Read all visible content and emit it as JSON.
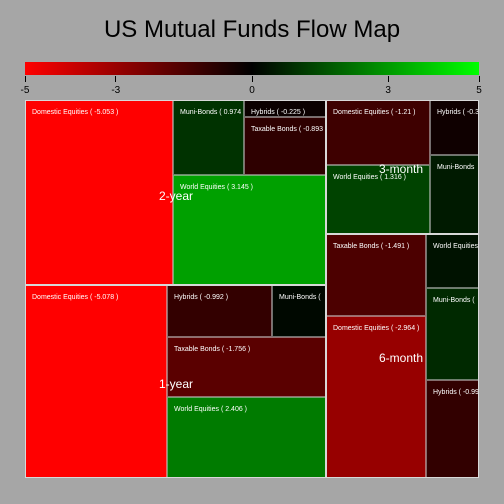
{
  "chart_data": {
    "type": "treemap",
    "title": "US Mutual Funds Flow Map",
    "color_scale": {
      "min": -5,
      "max": 5,
      "colors": [
        "#ff0000",
        "#000000",
        "#00ff00"
      ],
      "ticks": [
        "-5",
        "-3",
        "0",
        "3",
        "5"
      ],
      "tick_values": [
        -5,
        -3,
        0,
        3,
        5
      ]
    },
    "groups": [
      {
        "name": "2-year",
        "items": [
          {
            "label": "Domestic Equities ( -5.053 )",
            "value": -5.053
          },
          {
            "label": "Muni-Bonds ( 0.974",
            "value": 0.974
          },
          {
            "label": "Hybrids ( -0.225 )",
            "value": -0.225
          },
          {
            "label": "Taxable Bonds ( -0.893",
            "value": -0.893
          },
          {
            "label": "World Equities ( 3.145 )",
            "value": 3.145
          }
        ]
      },
      {
        "name": "1-year",
        "items": [
          {
            "label": "Domestic Equities ( -5.078 )",
            "value": -5.078
          },
          {
            "label": "Hybrids ( -0.992 )",
            "value": -0.992
          },
          {
            "label": "Muni-Bonds (",
            "value": 0.15
          },
          {
            "label": "Taxable Bonds ( -1.756 )",
            "value": -1.756
          },
          {
            "label": "World Equities ( 2.406 )",
            "value": 2.406
          }
        ]
      },
      {
        "name": "3-month",
        "items": [
          {
            "label": "Domestic Equities ( -1.21 )",
            "value": -1.21
          },
          {
            "label": "Hybrids ( -0.3",
            "value": -0.3
          },
          {
            "label": "Muni-Bonds",
            "value": 0.5
          },
          {
            "label": "World Equities ( 1.316 )",
            "value": 1.316
          }
        ]
      },
      {
        "name": "6-month",
        "items": [
          {
            "label": "Taxable Bonds ( -1.491 )",
            "value": -1.491
          },
          {
            "label": "World Equities",
            "value": 0.35
          },
          {
            "label": "Muni-Bonds (",
            "value": 0.8
          },
          {
            "label": "Domestic Equities ( -2.964 )",
            "value": -2.964
          },
          {
            "label": "Hybrids ( -0.99",
            "value": -0.99
          }
        ]
      }
    ]
  }
}
